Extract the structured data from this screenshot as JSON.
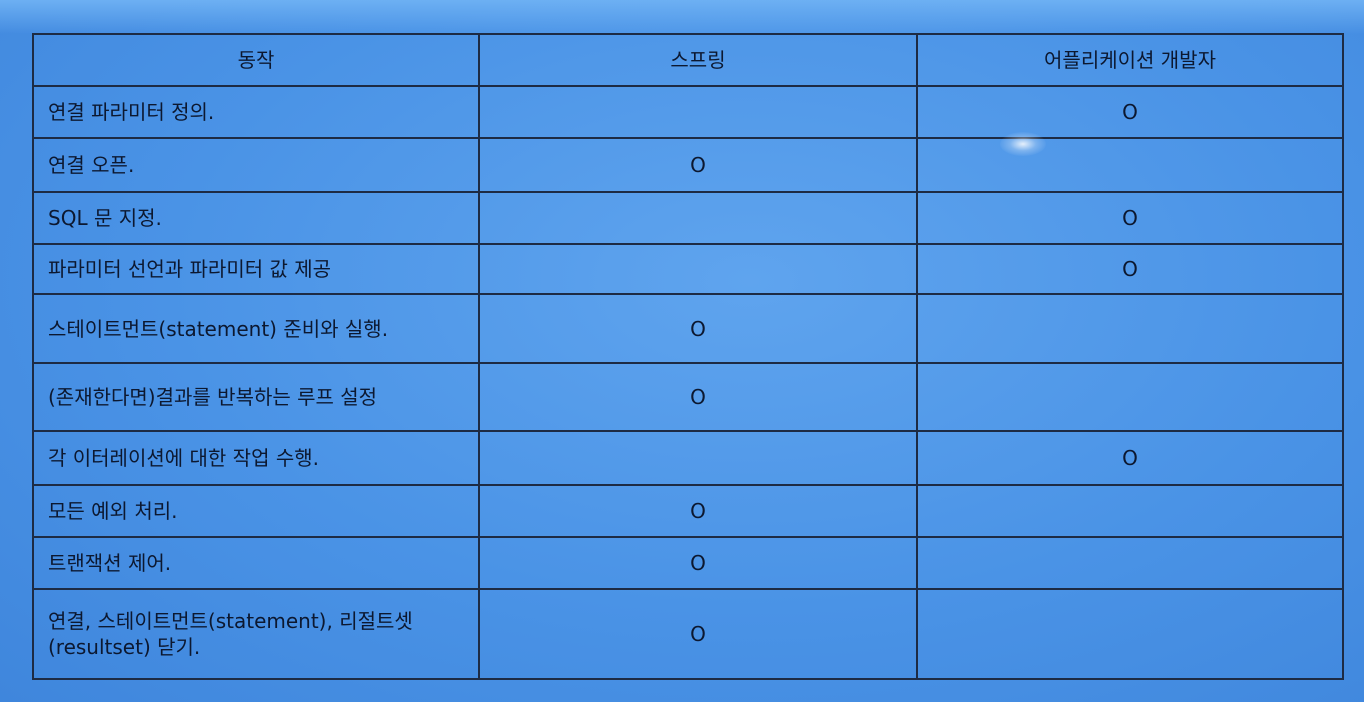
{
  "table": {
    "headers": [
      "동작",
      "스프링",
      "어플리케이션 개발자"
    ],
    "rows": [
      {
        "action": "연결 파라미터 정의.",
        "spring": "",
        "developer": "O"
      },
      {
        "action": "연결 오픈.",
        "spring": "O",
        "developer": ""
      },
      {
        "action": "SQL 문 지정.",
        "spring": "",
        "developer": "O"
      },
      {
        "action": "파라미터 선언과 파라미터 값 제공",
        "spring": "",
        "developer": "O"
      },
      {
        "action": "스테이트먼트(statement) 준비와 실행.",
        "spring": "O",
        "developer": ""
      },
      {
        "action": "(존재한다면)결과를 반복하는 루프 설정",
        "spring": "O",
        "developer": ""
      },
      {
        "action": "각 이터레이션에 대한 작업 수행.",
        "spring": "",
        "developer": "O"
      },
      {
        "action": "모든 예외 처리.",
        "spring": "O",
        "developer": ""
      },
      {
        "action": "트랜잭션 제어.",
        "spring": "O",
        "developer": ""
      },
      {
        "action": "연결, 스테이트먼트(statement), 리절트셋(resultset) 닫기.",
        "spring": "O",
        "developer": ""
      }
    ]
  }
}
